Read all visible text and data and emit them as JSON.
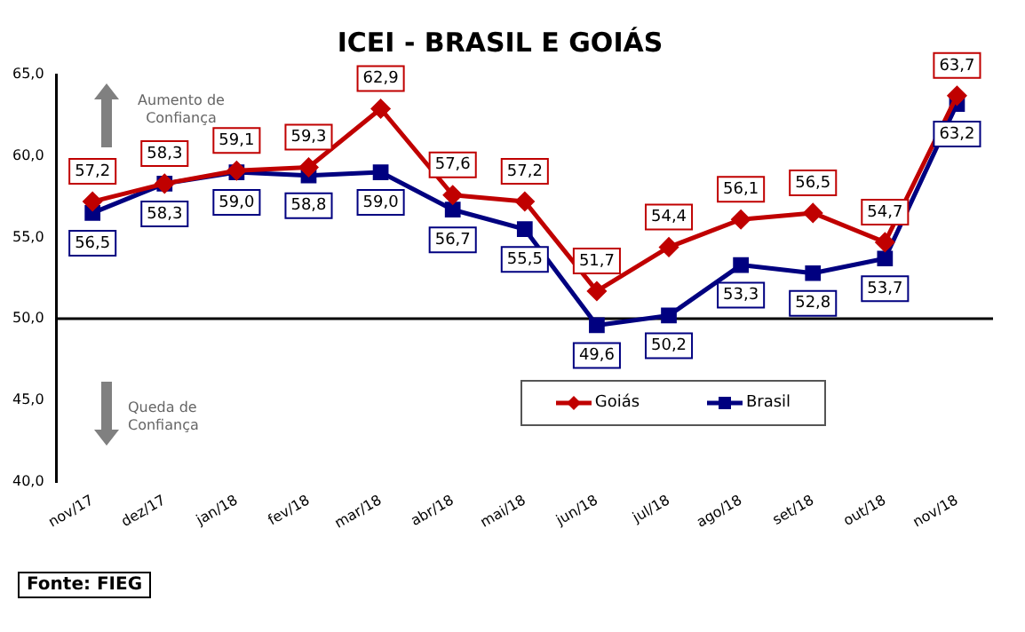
{
  "chart_data": {
    "type": "line",
    "title": "ICEI - BRASIL E GOIÁS",
    "categories": [
      "nov/17",
      "dez/17",
      "jan/18",
      "fev/18",
      "mar/18",
      "abr/18",
      "mai/18",
      "jun/18",
      "jul/18",
      "ago/18",
      "set/18",
      "out/18",
      "nov/18"
    ],
    "series": [
      {
        "name": "Goiás",
        "color": "#c00000",
        "marker": "diamond",
        "values": [
          57.2,
          58.3,
          59.1,
          59.3,
          62.9,
          57.6,
          57.2,
          51.7,
          54.4,
          56.1,
          56.5,
          54.7,
          63.7
        ],
        "value_labels": [
          "57,2",
          "58,3",
          "59,1",
          "59,3",
          "62,9",
          "57,6",
          "57,2",
          "51,7",
          "54,4",
          "56,1",
          "56,5",
          "54,7",
          "63,7"
        ]
      },
      {
        "name": "Brasil",
        "color": "#000080",
        "marker": "square",
        "values": [
          56.5,
          58.3,
          59.0,
          58.8,
          59.0,
          56.7,
          55.5,
          49.6,
          50.2,
          53.3,
          52.8,
          53.7,
          63.2
        ],
        "value_labels": [
          "56,5",
          "58,3",
          "59,0",
          "58,8",
          "59,0",
          "56,7",
          "55,5",
          "49,6",
          "50,2",
          "53,3",
          "52,8",
          "53,7",
          "63,2"
        ]
      }
    ],
    "ylim": [
      40,
      65
    ],
    "yticks": [
      {
        "value": 40,
        "label": "40,0"
      },
      {
        "value": 45,
        "label": "45,0"
      },
      {
        "value": 50,
        "label": "50,0"
      },
      {
        "value": 55,
        "label": "55,0"
      },
      {
        "value": 60,
        "label": "60,0"
      },
      {
        "value": 65,
        "label": "65,0"
      }
    ],
    "ref_lines": [
      {
        "axis": "y",
        "value": 50,
        "color": "#000000"
      }
    ],
    "grid": false,
    "legend": "center",
    "annotations": [
      "Aumento de Confiança",
      "Queda de Confiança",
      "Fonte: FIEG"
    ]
  }
}
